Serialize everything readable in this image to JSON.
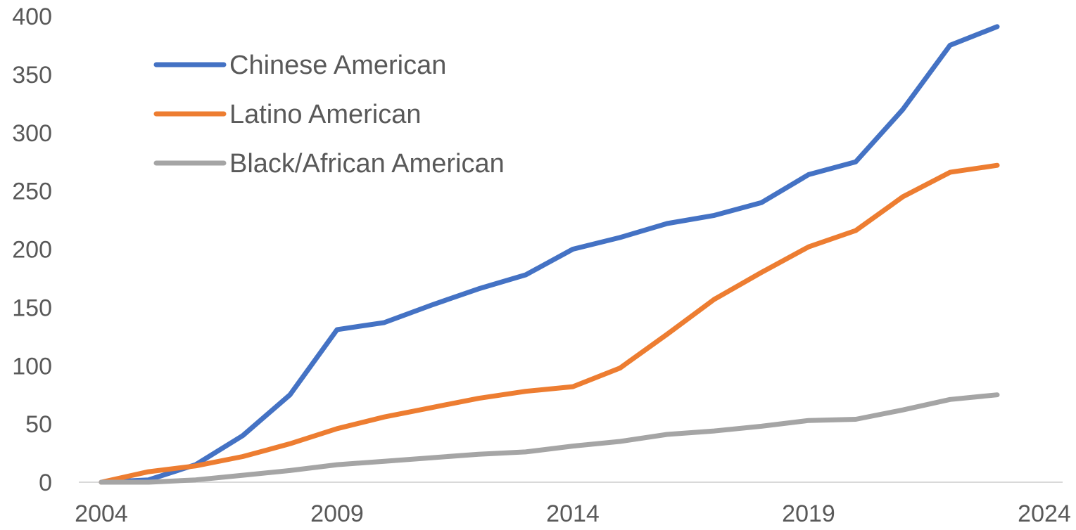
{
  "chart_data": {
    "type": "line",
    "title": "",
    "xlabel": "",
    "ylabel": "",
    "xlim": [
      2004,
      2024
    ],
    "ylim": [
      0,
      400
    ],
    "x_ticks": [
      "2004",
      "2009",
      "2014",
      "2019",
      "2024"
    ],
    "y_ticks": [
      "0",
      "50",
      "100",
      "150",
      "200",
      "250",
      "300",
      "350",
      "400"
    ],
    "grid": false,
    "legend_position": "top-left",
    "x": [
      2004,
      2005,
      2006,
      2007,
      2008,
      2009,
      2010,
      2011,
      2012,
      2013,
      2014,
      2015,
      2016,
      2017,
      2018,
      2019,
      2020,
      2021,
      2022,
      2023
    ],
    "series": [
      {
        "name": "Chinese American",
        "color": "#4472C4",
        "values": [
          0,
          2,
          15,
          40,
          75,
          131,
          137,
          152,
          166,
          178,
          200,
          210,
          222,
          229,
          240,
          264,
          275,
          320,
          375,
          391
        ]
      },
      {
        "name": "Latino American",
        "color": "#ED7D31",
        "values": [
          0,
          9,
          14,
          22,
          33,
          46,
          56,
          64,
          72,
          78,
          82,
          98,
          127,
          157,
          180,
          202,
          216,
          245,
          266,
          272
        ]
      },
      {
        "name": "Black/African American",
        "color": "#A5A5A5",
        "values": [
          0,
          0,
          2,
          6,
          10,
          15,
          18,
          21,
          24,
          26,
          31,
          35,
          41,
          44,
          48,
          53,
          54,
          62,
          71,
          75
        ]
      }
    ]
  }
}
